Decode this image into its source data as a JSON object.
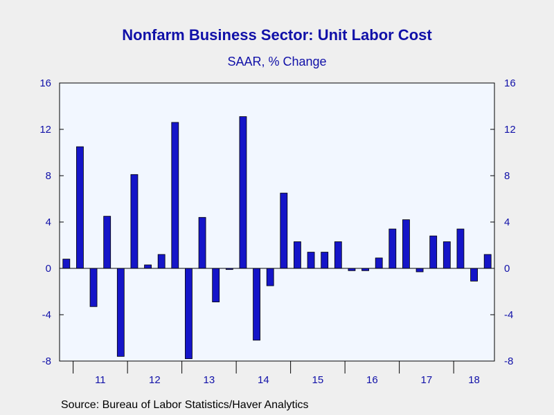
{
  "title": "Nonfarm Business Sector: Unit Labor Cost",
  "subtitle": "SAAR, % Change",
  "source": "Source:  Bureau of Labor Statistics/Haver Analytics",
  "colors": {
    "bar_fill": "#1515c8",
    "bar_stroke": "#000000",
    "text": "#1010a8",
    "plot_background": "#f2f7ff",
    "page_background": "#efefef"
  },
  "chart_data": {
    "type": "bar",
    "title": "Nonfarm Business Sector: Unit Labor Cost",
    "subtitle": "SAAR, % Change",
    "xlabel": "",
    "ylabel": "",
    "ylim": [
      -8,
      16
    ],
    "yticks": [
      -8,
      -4,
      0,
      4,
      8,
      12,
      16
    ],
    "y_axis_both_sides": true,
    "grid": false,
    "x_period_labels": [
      "11",
      "12",
      "13",
      "14",
      "15",
      "16",
      "17",
      "18"
    ],
    "categories": [
      "2010 Q4",
      "2011 Q1",
      "2011 Q2",
      "2011 Q3",
      "2011 Q4",
      "2012 Q1",
      "2012 Q2",
      "2012 Q3",
      "2012 Q4",
      "2013 Q1",
      "2013 Q2",
      "2013 Q3",
      "2013 Q4",
      "2014 Q1",
      "2014 Q2",
      "2014 Q3",
      "2014 Q4",
      "2015 Q1",
      "2015 Q2",
      "2015 Q3",
      "2015 Q4",
      "2016 Q1",
      "2016 Q2",
      "2016 Q3",
      "2016 Q4",
      "2017 Q1",
      "2017 Q2",
      "2017 Q3",
      "2017 Q4",
      "2018 Q1",
      "2018 Q2",
      "2018 Q3"
    ],
    "values": [
      0.8,
      10.5,
      -3.3,
      4.5,
      -7.6,
      8.1,
      0.3,
      1.2,
      12.6,
      -7.8,
      4.4,
      -2.9,
      -0.1,
      13.1,
      -6.2,
      -1.5,
      6.5,
      2.3,
      1.4,
      1.4,
      2.3,
      -0.2,
      -0.2,
      0.9,
      3.4,
      4.2,
      -0.3,
      2.8,
      2.3,
      3.4,
      -1.1,
      1.2
    ]
  }
}
